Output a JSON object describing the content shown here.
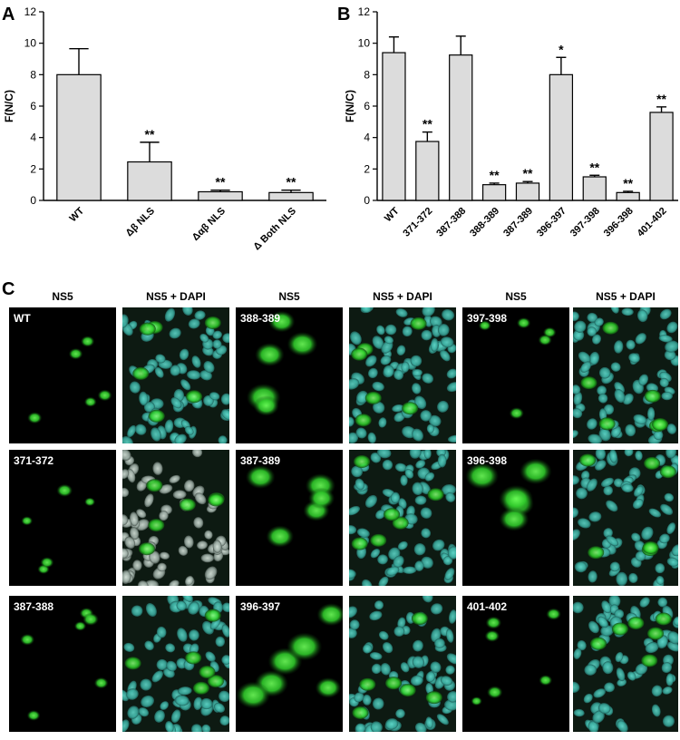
{
  "panels": {
    "a": "A",
    "b": "B",
    "c": "C"
  },
  "chart_data": [
    {
      "type": "bar",
      "panel": "A",
      "ylabel": "F(N/C)",
      "ylim": [
        0,
        12
      ],
      "yticks": [
        0,
        2,
        4,
        6,
        8,
        10,
        12
      ],
      "categories": [
        "WT",
        "Δβ NLS",
        "Δαβ NLS",
        "Δ Both NLS"
      ],
      "values": [
        8.0,
        2.45,
        0.55,
        0.5
      ],
      "errors": [
        1.65,
        1.25,
        0.1,
        0.15
      ],
      "significance": [
        "",
        "**",
        "**",
        "**"
      ]
    },
    {
      "type": "bar",
      "panel": "B",
      "ylabel": "F(N/C)",
      "ylim": [
        0,
        12
      ],
      "yticks": [
        0,
        2,
        4,
        6,
        8,
        10,
        12
      ],
      "categories": [
        "WT",
        "371-372",
        "387-388",
        "388-389",
        "387-389",
        "396-397",
        "397-398",
        "396-398",
        "401-402"
      ],
      "values": [
        9.4,
        3.75,
        9.25,
        1.0,
        1.1,
        8.0,
        1.5,
        0.5,
        5.6
      ],
      "errors": [
        1.0,
        0.6,
        1.2,
        0.1,
        0.1,
        1.1,
        0.1,
        0.08,
        0.35
      ],
      "significance": [
        "",
        "**",
        "",
        "**",
        "**",
        "*",
        "**",
        "**",
        "**"
      ]
    }
  ],
  "micrographs": {
    "columns": [
      "NS5",
      "NS5 + DAPI",
      "NS5",
      "NS5 + DAPI",
      "NS5",
      "NS5 + DAPI"
    ],
    "labels": [
      "WT",
      "388-389",
      "397-398",
      "371-372",
      "387-389",
      "396-398",
      "387-388",
      "396-397",
      "401-402"
    ]
  }
}
